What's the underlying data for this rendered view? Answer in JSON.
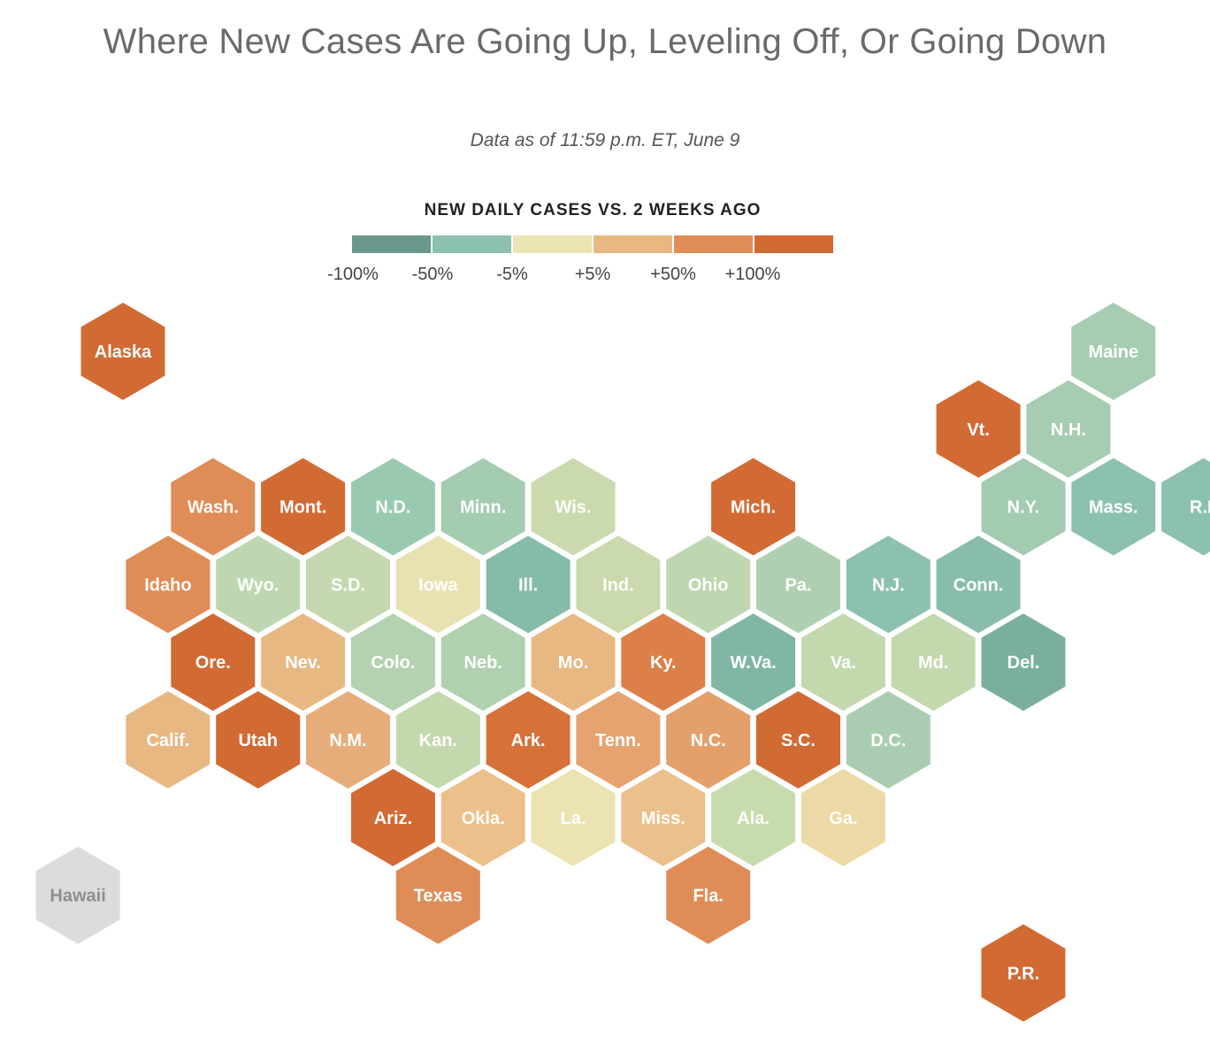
{
  "title": "Where New Cases Are Going Up, Leveling Off, Or Going Down",
  "subtitle": "Data as of 11:59 p.m. ET, June 9",
  "legend": {
    "title": "NEW DAILY CASES VS. 2 WEEKS AGO",
    "colors": [
      "#6a988d",
      "#8cc2ad",
      "#ece3b2",
      "#e8b883",
      "#df8c57",
      "#d26a34"
    ],
    "ticks": [
      "-100%",
      "-50%",
      "-5%",
      "+5%",
      "+50%",
      "+100%"
    ]
  },
  "chart_data": {
    "type": "hex-tile-map",
    "states": [
      {
        "label": "Alaska",
        "row": 0,
        "col": 0,
        "color": "#d26a34"
      },
      {
        "label": "Maine",
        "row": 0,
        "col": 11,
        "color": "#a6ccb1"
      },
      {
        "label": "Vt.",
        "row": 1,
        "col": 10,
        "color": "#d26a34"
      },
      {
        "label": "N.H.",
        "row": 1,
        "col": 11,
        "color": "#a6ccb1"
      },
      {
        "label": "Wash.",
        "row": 2,
        "col": 1,
        "color": "#df8c57"
      },
      {
        "label": "Mont.",
        "row": 2,
        "col": 2,
        "color": "#d26a34"
      },
      {
        "label": "N.D.",
        "row": 2,
        "col": 3,
        "color": "#9ac9b1"
      },
      {
        "label": "Minn.",
        "row": 2,
        "col": 4,
        "color": "#a4ccb1"
      },
      {
        "label": "Wis.",
        "row": 2,
        "col": 5,
        "color": "#cbdaad"
      },
      {
        "label": "Mich.",
        "row": 2,
        "col": 7,
        "color": "#d26a34"
      },
      {
        "label": "N.Y.",
        "row": 2,
        "col": 10,
        "color": "#a2cbb2"
      },
      {
        "label": "Mass.",
        "row": 2,
        "col": 11,
        "color": "#8cc2ad"
      },
      {
        "label": "R.I.",
        "row": 2,
        "col": 12,
        "color": "#8cc2ad"
      },
      {
        "label": "Idaho",
        "row": 3,
        "col": 1,
        "color": "#df8c57"
      },
      {
        "label": "Wyo.",
        "row": 3,
        "col": 2,
        "color": "#bed7b0"
      },
      {
        "label": "S.D.",
        "row": 3,
        "col": 3,
        "color": "#c4d7ae"
      },
      {
        "label": "Iowa",
        "row": 3,
        "col": 4,
        "color": "#e8e2b1"
      },
      {
        "label": "Ill.",
        "row": 3,
        "col": 5,
        "color": "#85bba9"
      },
      {
        "label": "Ind.",
        "row": 3,
        "col": 6,
        "color": "#cbdaad"
      },
      {
        "label": "Ohio",
        "row": 3,
        "col": 7,
        "color": "#bed7b0"
      },
      {
        "label": "Pa.",
        "row": 3,
        "col": 8,
        "color": "#aecfb1"
      },
      {
        "label": "N.J.",
        "row": 3,
        "col": 9,
        "color": "#8cc2ad"
      },
      {
        "label": "Conn.",
        "row": 3,
        "col": 10,
        "color": "#88bdab"
      },
      {
        "label": "Ore.",
        "row": 4,
        "col": 1,
        "color": "#d26a34"
      },
      {
        "label": "Nev.",
        "row": 4,
        "col": 2,
        "color": "#e8b883"
      },
      {
        "label": "Colo.",
        "row": 4,
        "col": 3,
        "color": "#b2d2b0"
      },
      {
        "label": "Neb.",
        "row": 4,
        "col": 4,
        "color": "#b0d1b0"
      },
      {
        "label": "Mo.",
        "row": 4,
        "col": 5,
        "color": "#e8b883"
      },
      {
        "label": "Ky.",
        "row": 4,
        "col": 6,
        "color": "#dc7f48"
      },
      {
        "label": "W.Va.",
        "row": 4,
        "col": 7,
        "color": "#7fb6a5"
      },
      {
        "label": "Va.",
        "row": 4,
        "col": 8,
        "color": "#c4d8ae"
      },
      {
        "label": "Md.",
        "row": 4,
        "col": 9,
        "color": "#c4d8ae"
      },
      {
        "label": "Del.",
        "row": 4,
        "col": 10,
        "color": "#7aaf9f"
      },
      {
        "label": "Calif.",
        "row": 5,
        "col": 1,
        "color": "#e8b883"
      },
      {
        "label": "Utah",
        "row": 5,
        "col": 2,
        "color": "#d26a34"
      },
      {
        "label": "N.M.",
        "row": 5,
        "col": 3,
        "color": "#e6ad7b"
      },
      {
        "label": "Kan.",
        "row": 5,
        "col": 4,
        "color": "#c4d8ae"
      },
      {
        "label": "Ark.",
        "row": 5,
        "col": 5,
        "color": "#d67138"
      },
      {
        "label": "Tenn.",
        "row": 5,
        "col": 6,
        "color": "#e6a370"
      },
      {
        "label": "N.C.",
        "row": 5,
        "col": 7,
        "color": "#e4a06b"
      },
      {
        "label": "S.C.",
        "row": 5,
        "col": 8,
        "color": "#d26a34"
      },
      {
        "label": "D.C.",
        "row": 5,
        "col": 9,
        "color": "#aacdb1"
      },
      {
        "label": "Ariz.",
        "row": 6,
        "col": 3,
        "color": "#d26a34"
      },
      {
        "label": "Okla.",
        "row": 6,
        "col": 4,
        "color": "#ebc08a"
      },
      {
        "label": "La.",
        "row": 6,
        "col": 5,
        "color": "#ece3b2"
      },
      {
        "label": "Miss.",
        "row": 6,
        "col": 6,
        "color": "#eac08c"
      },
      {
        "label": "Ala.",
        "row": 6,
        "col": 7,
        "color": "#c8dbad"
      },
      {
        "label": "Ga.",
        "row": 6,
        "col": 8,
        "color": "#ecd9a5"
      },
      {
        "label": "Hawaii",
        "row": 7,
        "col": 0,
        "color": "#dcdcdc",
        "dim": true
      },
      {
        "label": "Texas",
        "row": 7,
        "col": 4,
        "color": "#df8c57"
      },
      {
        "label": "Fla.",
        "row": 7,
        "col": 7,
        "color": "#df8c57"
      },
      {
        "label": "P.R.",
        "row": 8,
        "col": 10,
        "color": "#d26a34"
      }
    ]
  }
}
